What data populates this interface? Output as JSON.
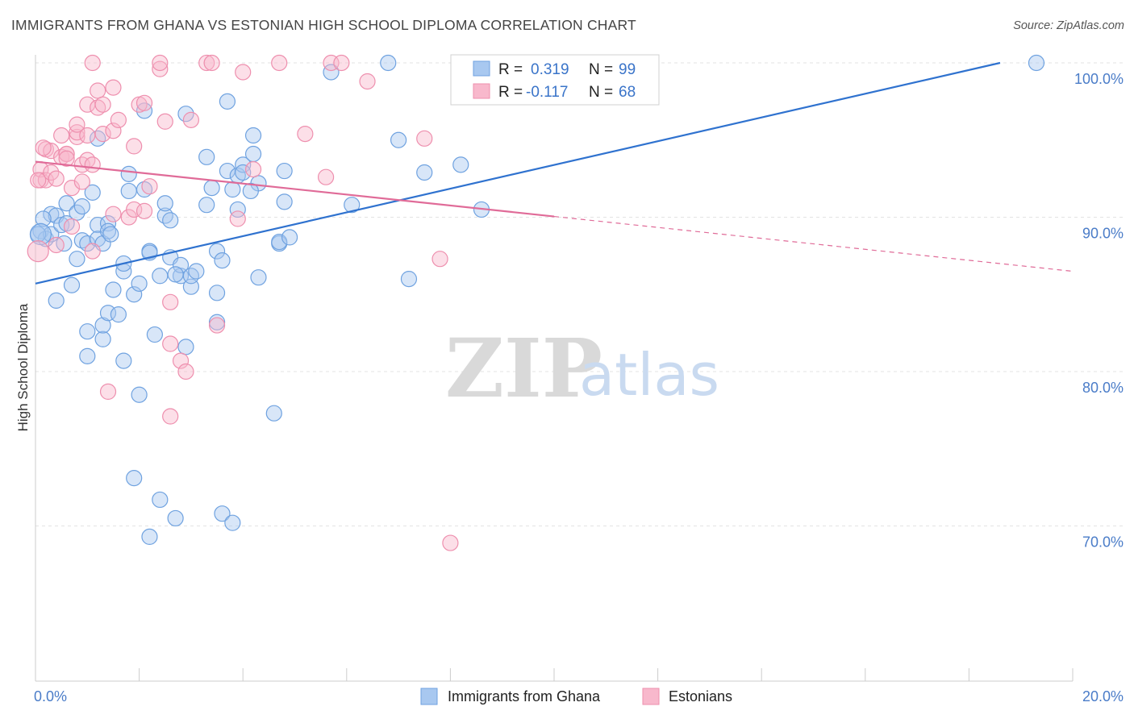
{
  "title": "IMMIGRANTS FROM GHANA VS ESTONIAN HIGH SCHOOL DIPLOMA CORRELATION CHART",
  "source": "Source: ZipAtlas.com",
  "watermark": {
    "zip": "ZIP",
    "atlas": "atlas"
  },
  "legend_box": {
    "rows": [
      {
        "r_label": "R =",
        "r_value": "0.319",
        "n_label": "N =",
        "n_value": "99",
        "color": "#a8c8f0"
      },
      {
        "r_label": "R =",
        "r_value": "-0.117",
        "n_label": "N =",
        "n_value": "68",
        "color": "#f8b8cc"
      }
    ]
  },
  "chart_data": {
    "type": "scatter",
    "title": "IMMIGRANTS FROM GHANA VS ESTONIAN HIGH SCHOOL DIPLOMA CORRELATION CHART",
    "xlabel": "",
    "ylabel": "High School Diploma",
    "xlim": [
      0,
      20
    ],
    "ylim": [
      60,
      100
    ],
    "x_ticks": [
      "0.0%",
      "20.0%"
    ],
    "y_ticks": [
      {
        "value": 100,
        "label": "100.0%"
      },
      {
        "value": 90,
        "label": "90.0%"
      },
      {
        "value": 80,
        "label": "80.0%"
      },
      {
        "value": 70,
        "label": "70.0%"
      }
    ],
    "grid": true,
    "legend_position": "bottom-center",
    "series": [
      {
        "name": "Immigrants from Ghana",
        "color": "#6fa2e0",
        "fill": "#a8c8f0",
        "trend": {
          "x0": 0,
          "y0": 85.7,
          "x1": 18.6,
          "y1": 100,
          "solid_to": 18.6
        },
        "points": [
          [
            0.1,
            89.1
          ],
          [
            0.2,
            88.6
          ],
          [
            0.3,
            90.2
          ],
          [
            0.3,
            88.9
          ],
          [
            0.4,
            84.6
          ],
          [
            0.4,
            90.1
          ],
          [
            0.5,
            89.5
          ],
          [
            0.6,
            90.9
          ],
          [
            0.6,
            89.6
          ],
          [
            0.7,
            85.6
          ],
          [
            0.8,
            90.3
          ],
          [
            0.8,
            87.3
          ],
          [
            0.9,
            88.5
          ],
          [
            1.0,
            88.3
          ],
          [
            0.9,
            90.7
          ],
          [
            1.0,
            81.0
          ],
          [
            1.0,
            82.6
          ],
          [
            1.1,
            91.6
          ],
          [
            1.2,
            89.5
          ],
          [
            1.2,
            88.6
          ],
          [
            1.2,
            95.1
          ],
          [
            1.3,
            82.1
          ],
          [
            1.3,
            83.0
          ],
          [
            1.3,
            88.3
          ],
          [
            1.4,
            89.6
          ],
          [
            1.4,
            89.1
          ],
          [
            1.4,
            83.8
          ],
          [
            1.5,
            85.3
          ],
          [
            1.6,
            83.7
          ],
          [
            1.7,
            86.5
          ],
          [
            1.7,
            80.7
          ],
          [
            1.7,
            87.0
          ],
          [
            1.8,
            91.7
          ],
          [
            1.8,
            92.8
          ],
          [
            1.9,
            73.1
          ],
          [
            1.9,
            85.0
          ],
          [
            2.0,
            85.7
          ],
          [
            2.0,
            78.5
          ],
          [
            2.1,
            96.9
          ],
          [
            2.1,
            91.8
          ],
          [
            2.2,
            87.8
          ],
          [
            2.2,
            69.3
          ],
          [
            2.2,
            87.7
          ],
          [
            2.3,
            82.4
          ],
          [
            2.4,
            86.2
          ],
          [
            2.4,
            71.7
          ],
          [
            2.5,
            90.1
          ],
          [
            2.5,
            90.9
          ],
          [
            2.6,
            87.4
          ],
          [
            2.6,
            89.8
          ],
          [
            2.7,
            70.5
          ],
          [
            2.8,
            86.2
          ],
          [
            2.8,
            86.9
          ],
          [
            2.9,
            81.6
          ],
          [
            2.9,
            96.7
          ],
          [
            3.0,
            85.5
          ],
          [
            3.0,
            86.2
          ],
          [
            3.1,
            86.5
          ],
          [
            3.3,
            93.9
          ],
          [
            3.3,
            90.8
          ],
          [
            3.4,
            91.9
          ],
          [
            3.5,
            85.1
          ],
          [
            3.5,
            83.2
          ],
          [
            3.5,
            87.8
          ],
          [
            3.6,
            87.2
          ],
          [
            3.6,
            70.8
          ],
          [
            3.7,
            97.5
          ],
          [
            3.7,
            93.0
          ],
          [
            3.8,
            91.8
          ],
          [
            3.8,
            70.2
          ],
          [
            3.9,
            90.5
          ],
          [
            3.9,
            92.7
          ],
          [
            4.0,
            93.4
          ],
          [
            4.0,
            92.9
          ],
          [
            4.2,
            94.1
          ],
          [
            4.2,
            95.3
          ],
          [
            4.3,
            92.2
          ],
          [
            4.3,
            86.1
          ],
          [
            4.6,
            77.3
          ],
          [
            4.7,
            88.3
          ],
          [
            4.7,
            88.4
          ],
          [
            4.8,
            93.0
          ],
          [
            4.8,
            91.0
          ],
          [
            4.9,
            88.7
          ],
          [
            5.7,
            99.4
          ],
          [
            6.1,
            90.8
          ],
          [
            6.8,
            100.0
          ],
          [
            7.0,
            95.0
          ],
          [
            7.2,
            86.0
          ],
          [
            7.5,
            92.9
          ],
          [
            8.2,
            93.4
          ],
          [
            8.6,
            90.5
          ],
          [
            19.3,
            100.0
          ],
          [
            0.05,
            88.9
          ],
          [
            0.15,
            89.9
          ],
          [
            0.55,
            88.3
          ],
          [
            2.7,
            86.3
          ],
          [
            4.15,
            91.7
          ],
          [
            1.45,
            88.9
          ]
        ]
      },
      {
        "name": "Estonians",
        "color": "#ee8fae",
        "fill": "#f8b8cc",
        "trend": {
          "x0": 0,
          "y0": 93.6,
          "x1": 20,
          "y1": 86.5,
          "solid_to": 10.0
        },
        "points": [
          [
            0.1,
            92.4
          ],
          [
            0.1,
            93.1
          ],
          [
            0.2,
            92.4
          ],
          [
            0.2,
            94.4
          ],
          [
            0.3,
            92.9
          ],
          [
            0.3,
            94.3
          ],
          [
            0.4,
            92.5
          ],
          [
            0.4,
            88.2
          ],
          [
            0.5,
            95.3
          ],
          [
            0.5,
            93.9
          ],
          [
            0.6,
            94.1
          ],
          [
            0.6,
            94.1
          ],
          [
            0.6,
            93.8
          ],
          [
            0.7,
            91.9
          ],
          [
            0.7,
            89.4
          ],
          [
            0.8,
            95.2
          ],
          [
            0.8,
            95.5
          ],
          [
            0.8,
            96.0
          ],
          [
            0.9,
            92.3
          ],
          [
            0.9,
            93.4
          ],
          [
            1.0,
            95.3
          ],
          [
            1.0,
            93.7
          ],
          [
            1.0,
            97.3
          ],
          [
            1.1,
            87.8
          ],
          [
            1.1,
            100.0
          ],
          [
            1.1,
            93.4
          ],
          [
            1.2,
            97.1
          ],
          [
            1.2,
            98.2
          ],
          [
            1.3,
            97.3
          ],
          [
            1.3,
            95.4
          ],
          [
            1.4,
            78.7
          ],
          [
            1.5,
            90.2
          ],
          [
            1.5,
            95.6
          ],
          [
            1.5,
            98.4
          ],
          [
            1.6,
            96.3
          ],
          [
            1.8,
            90.0
          ],
          [
            1.9,
            94.6
          ],
          [
            1.9,
            90.5
          ],
          [
            2.0,
            97.3
          ],
          [
            2.1,
            97.4
          ],
          [
            2.1,
            90.4
          ],
          [
            2.2,
            92.0
          ],
          [
            2.4,
            99.6
          ],
          [
            2.4,
            100.0
          ],
          [
            2.5,
            96.2
          ],
          [
            2.6,
            84.5
          ],
          [
            2.6,
            81.8
          ],
          [
            2.6,
            77.1
          ],
          [
            2.8,
            80.7
          ],
          [
            2.9,
            80.0
          ],
          [
            3.0,
            96.3
          ],
          [
            3.3,
            100.0
          ],
          [
            3.4,
            100.0
          ],
          [
            3.5,
            83.0
          ],
          [
            3.9,
            89.9
          ],
          [
            4.0,
            99.4
          ],
          [
            4.2,
            93.1
          ],
          [
            4.7,
            100.0
          ],
          [
            5.2,
            95.4
          ],
          [
            5.6,
            92.6
          ],
          [
            5.7,
            100.0
          ],
          [
            5.9,
            100.0
          ],
          [
            6.4,
            98.8
          ],
          [
            7.5,
            95.1
          ],
          [
            7.8,
            87.3
          ],
          [
            8.0,
            68.9
          ],
          [
            0.05,
            92.4
          ],
          [
            0.15,
            94.5
          ]
        ]
      }
    ],
    "big_points": [
      {
        "series": 0,
        "x": 0.1,
        "y": 88.9
      },
      {
        "series": 1,
        "x": 0.05,
        "y": 87.8
      }
    ]
  },
  "bottom_legend": [
    {
      "label": "Immigrants from Ghana",
      "color": "#a8c8f0",
      "border": "#6fa2e0"
    },
    {
      "label": "Estonians",
      "color": "#f8b8cc",
      "border": "#ee8fae"
    }
  ]
}
